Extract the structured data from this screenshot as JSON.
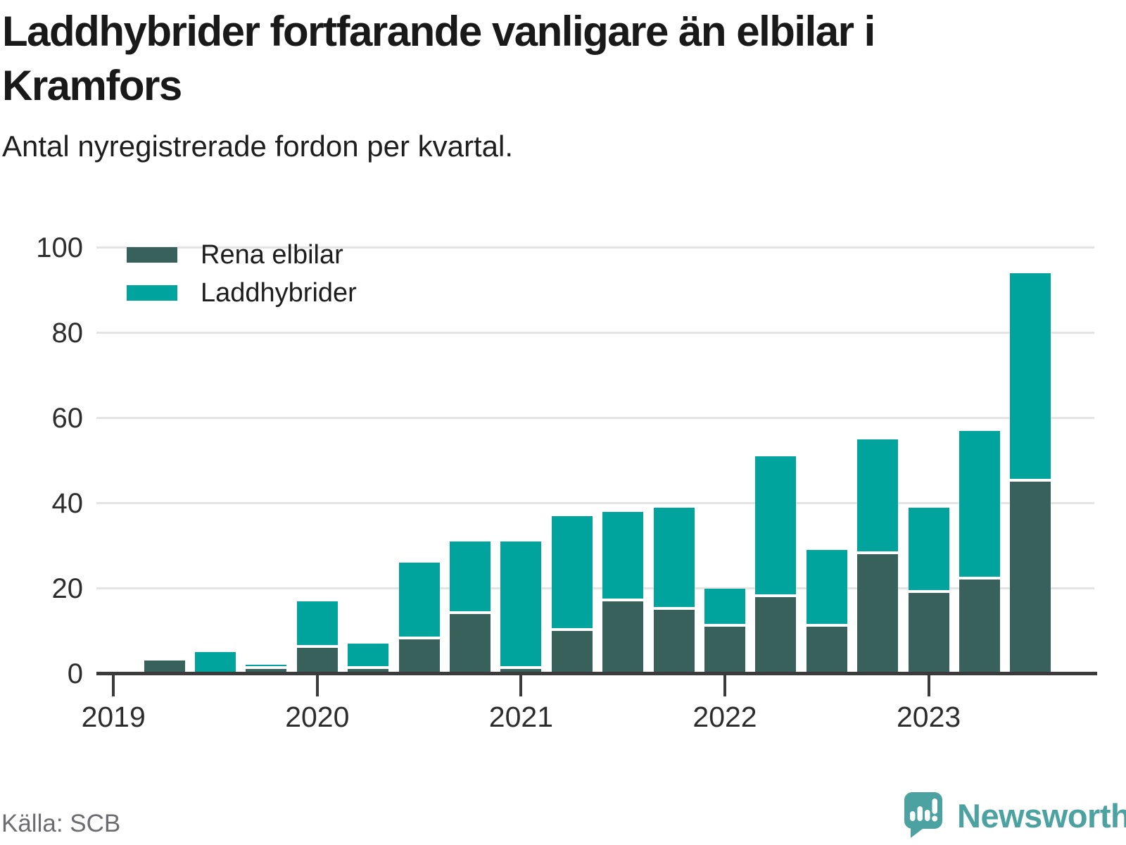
{
  "title_lines": [
    "Laddhybrider fortfarande vanligare än elbilar i",
    "Kramfors"
  ],
  "title": "Laddhybrider fortfarande vanligare än elbilar i Kramfors",
  "subtitle": "Antal nyregistrerade fordon per kvartal.",
  "source": "Källa: SCB",
  "brand": {
    "name": "Newsworthy"
  },
  "colors": {
    "rena_elbilar": "#38615c",
    "laddhybrider": "#00a49c",
    "title_text": "#191919",
    "axis_text": "#2d2d2d",
    "axis_line": "#3b3b3b",
    "gridline": "#e4e4e4",
    "source_text": "#6c6c71",
    "brand_teal": "#4ba2a0",
    "background": "#ffffff"
  },
  "chart_data": {
    "type": "bar",
    "stacked": true,
    "title": "Laddhybrider fortfarande vanligare än elbilar i Kramfors",
    "subtitle": "Antal nyregistrerade fordon per kvartal.",
    "xlabel": "",
    "ylabel": "",
    "ylim": [
      0,
      100
    ],
    "yticks": [
      0,
      20,
      40,
      60,
      80,
      100
    ],
    "xticks": [
      "2019",
      "2020",
      "2021",
      "2022",
      "2023"
    ],
    "grid": "horizontal",
    "legend_position": "top-left",
    "categories": [
      "2019 Q2",
      "2019 Q3",
      "2019 Q4",
      "2020 Q1",
      "2020 Q2",
      "2020 Q3",
      "2020 Q4",
      "2021 Q1",
      "2021 Q2",
      "2021 Q3",
      "2021 Q4",
      "2022 Q1",
      "2022 Q2",
      "2022 Q3",
      "2022 Q4",
      "2023 Q1",
      "2023 Q2",
      "2023 Q3"
    ],
    "series": [
      {
        "name": "Rena elbilar",
        "color": "#38615c",
        "values": [
          3,
          0,
          1,
          6,
          1,
          8,
          14,
          1,
          10,
          17,
          15,
          11,
          18,
          11,
          28,
          19,
          22,
          45
        ]
      },
      {
        "name": "Laddhybrider",
        "color": "#00a49c",
        "values": [
          0,
          5,
          1,
          11,
          6,
          18,
          17,
          30,
          27,
          21,
          24,
          9,
          33,
          18,
          27,
          20,
          35,
          49
        ]
      }
    ],
    "totals": [
      3,
      5,
      2,
      17,
      7,
      26,
      31,
      31,
      37,
      38,
      39,
      20,
      51,
      29,
      55,
      39,
      57,
      94
    ]
  }
}
